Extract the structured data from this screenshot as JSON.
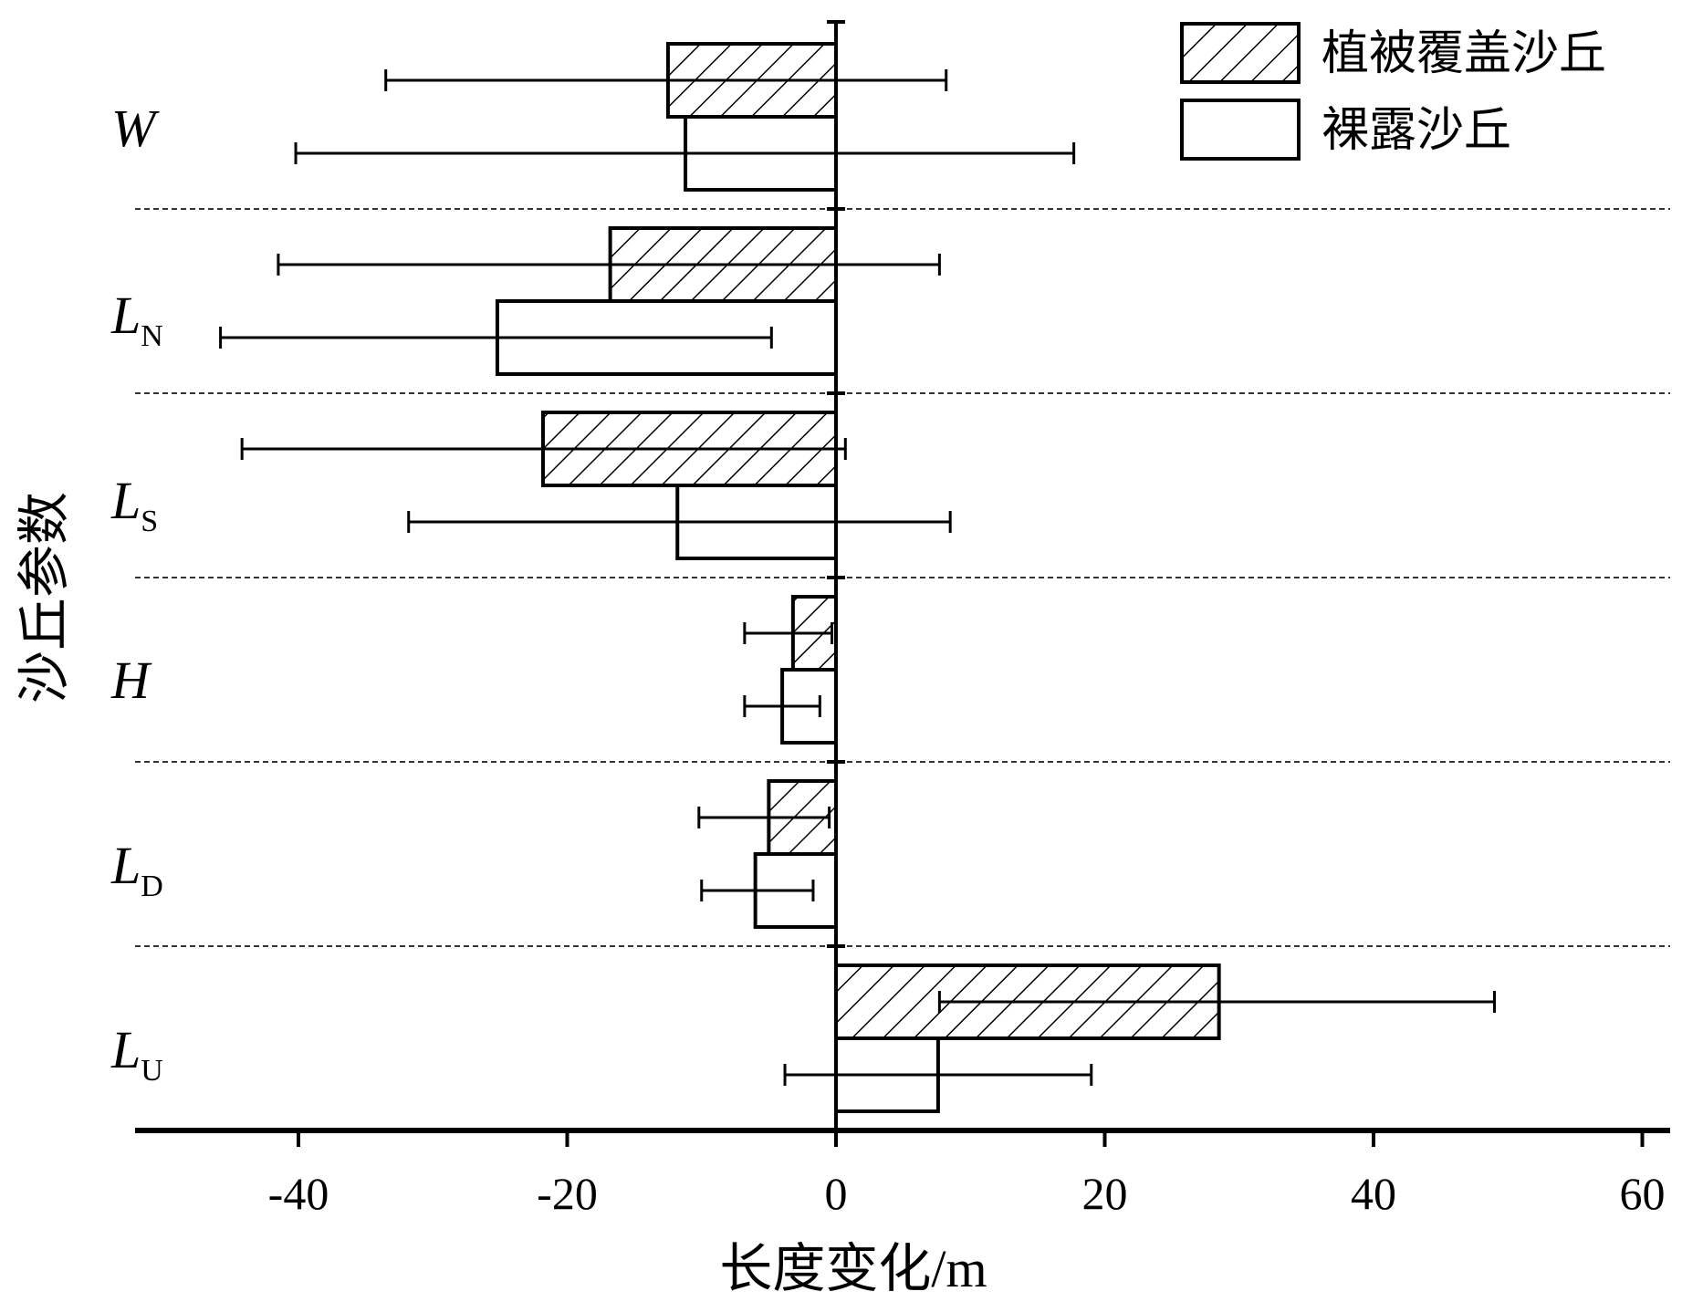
{
  "chart_data": {
    "type": "bar",
    "orientation": "horizontal",
    "categories": [
      {
        "main": "W",
        "sub": ""
      },
      {
        "main": "L",
        "sub": "N"
      },
      {
        "main": "L",
        "sub": "S"
      },
      {
        "main": "H",
        "sub": ""
      },
      {
        "main": "L",
        "sub": "D"
      },
      {
        "main": "L",
        "sub": "U"
      }
    ],
    "series": [
      {
        "name": "植被覆盖沙丘",
        "pattern": "hatch",
        "values": [
          -12.5,
          -16.8,
          -21.8,
          -3.2,
          -5.0,
          28.5
        ],
        "err_low": [
          -33.5,
          -41.5,
          -44.2,
          -6.8,
          -10.2,
          7.7
        ],
        "err_high": [
          8.2,
          7.7,
          0.7,
          -0.3,
          -0.5,
          49.0
        ]
      },
      {
        "name": "裸露沙丘",
        "pattern": "open",
        "values": [
          -11.2,
          -25.2,
          -11.8,
          -4.0,
          -6.0,
          7.6
        ],
        "err_low": [
          -40.2,
          -45.8,
          -31.8,
          -6.8,
          -10.0,
          -3.8
        ],
        "err_high": [
          17.7,
          -4.8,
          8.5,
          -1.2,
          -1.7,
          19.0
        ]
      }
    ],
    "xlabel": "长度变化/m",
    "ylabel": "沙丘参数",
    "xlim": [
      -52.5,
      62
    ],
    "xticks": [
      -40,
      -20,
      0,
      20,
      40,
      60
    ],
    "xtick_labels": [
      "-40",
      "-20",
      "0",
      "20",
      "40",
      "60"
    ],
    "grid": "dashed separators between categories",
    "legend_position": "top-right"
  },
  "colors": {
    "stroke": "#000000",
    "fill": "#ffffff",
    "separator": "#333333"
  }
}
